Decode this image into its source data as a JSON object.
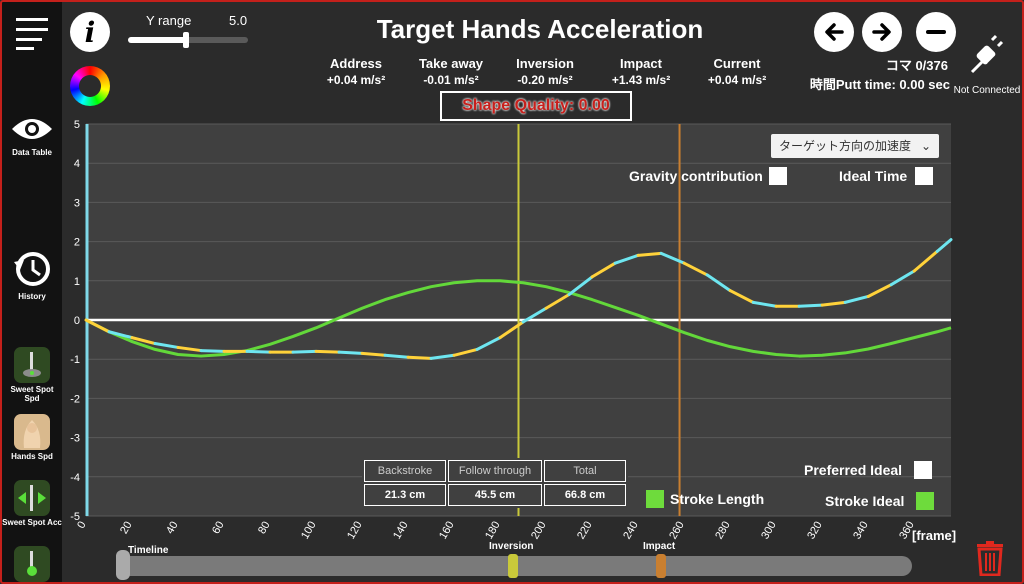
{
  "app": {
    "title": "Target Hands Acceleration",
    "y_range_label": "Y range",
    "y_range_value": "5.0",
    "y_range_level": 0.48,
    "frame_counter": "コマ 0/376",
    "putt_time": "時間Putt time: 0.00 sec",
    "connection_status": "Not Connected",
    "shape_quality": "Shape Quality: 0.00"
  },
  "metrics": [
    {
      "label": "Address",
      "value": "+0.04 m/s²"
    },
    {
      "label": "Take away",
      "value": "-0.01 m/s²"
    },
    {
      "label": "Inversion",
      "value": "-0.20 m/s²"
    },
    {
      "label": "Impact",
      "value": "+1.43 m/s²"
    },
    {
      "label": "Current",
      "value": "+0.04 m/s²"
    }
  ],
  "sidebar": {
    "data_table": "Data Table",
    "history": "History",
    "sweet_spot_spd": "Sweet Spot Spd",
    "hands_spd": "Hands Spd",
    "sweet_spot_acc": "Sweet Spot Acc"
  },
  "controls": {
    "dropdown_value": "ターゲット方向の加速度",
    "gravity_contribution": "Gravity contribution",
    "ideal_time": "Ideal Time",
    "preferred_ideal": "Preferred Ideal",
    "stroke_ideal": "Stroke Ideal",
    "stroke_length": "Stroke Length"
  },
  "stroke_table": {
    "headers": [
      "Backstroke",
      "Follow through",
      "Total"
    ],
    "values": [
      "21.3 cm",
      "45.5 cm",
      "66.8 cm"
    ]
  },
  "timeline": {
    "label": "Timeline",
    "inversion_label": "Inversion",
    "impact_label": "Impact"
  },
  "colors": {
    "measured_a": "#ffd23a",
    "measured_b": "#6ee6f0",
    "ideal": "#63d83a",
    "inversion_line": "#c9c93a",
    "impact_line": "#c97f30",
    "start_line": "#7fd8e8",
    "frame_border": "#c4201b"
  },
  "chart_data": {
    "type": "line",
    "xlabel": "[frame]",
    "ylabel": "",
    "xlim": [
      0,
      376
    ],
    "ylim": [
      -5,
      5
    ],
    "x_ticks": [
      0,
      20,
      40,
      60,
      80,
      100,
      120,
      140,
      160,
      180,
      200,
      220,
      240,
      260,
      280,
      300,
      320,
      340,
      360
    ],
    "y_ticks": [
      -5,
      -4,
      -3,
      -2,
      -1,
      0,
      1,
      2,
      3,
      4,
      5
    ],
    "grid": true,
    "markers": {
      "inversion": 188,
      "impact": 258
    },
    "series": [
      {
        "name": "measured",
        "x": [
          0,
          10,
          20,
          30,
          40,
          50,
          60,
          70,
          80,
          90,
          100,
          110,
          120,
          130,
          140,
          150,
          160,
          170,
          180,
          190,
          200,
          210,
          220,
          230,
          240,
          250,
          260,
          270,
          280,
          290,
          300,
          310,
          320,
          330,
          340,
          350,
          360,
          370,
          376
        ],
        "y": [
          0,
          -0.3,
          -0.45,
          -0.6,
          -0.7,
          -0.78,
          -0.8,
          -0.8,
          -0.82,
          -0.82,
          -0.8,
          -0.82,
          -0.85,
          -0.9,
          -0.95,
          -0.98,
          -0.9,
          -0.75,
          -0.45,
          -0.05,
          0.3,
          0.65,
          1.1,
          1.45,
          1.65,
          1.7,
          1.45,
          1.15,
          0.75,
          0.45,
          0.35,
          0.35,
          0.38,
          0.45,
          0.6,
          0.9,
          1.25,
          1.75,
          2.05
        ]
      },
      {
        "name": "ideal",
        "x": [
          0,
          10,
          20,
          30,
          40,
          50,
          60,
          70,
          80,
          90,
          100,
          110,
          120,
          130,
          140,
          150,
          160,
          170,
          180,
          190,
          200,
          210,
          220,
          230,
          240,
          250,
          260,
          270,
          280,
          290,
          300,
          310,
          320,
          330,
          340,
          350,
          360,
          370,
          376
        ],
        "y": [
          0,
          -0.3,
          -0.55,
          -0.75,
          -0.88,
          -0.92,
          -0.88,
          -0.78,
          -0.62,
          -0.42,
          -0.2,
          0.05,
          0.3,
          0.52,
          0.7,
          0.85,
          0.95,
          1.0,
          1.0,
          0.95,
          0.85,
          0.7,
          0.52,
          0.32,
          0.12,
          -0.1,
          -0.32,
          -0.52,
          -0.68,
          -0.8,
          -0.88,
          -0.92,
          -0.9,
          -0.84,
          -0.74,
          -0.6,
          -0.45,
          -0.3,
          -0.2
        ]
      }
    ]
  }
}
